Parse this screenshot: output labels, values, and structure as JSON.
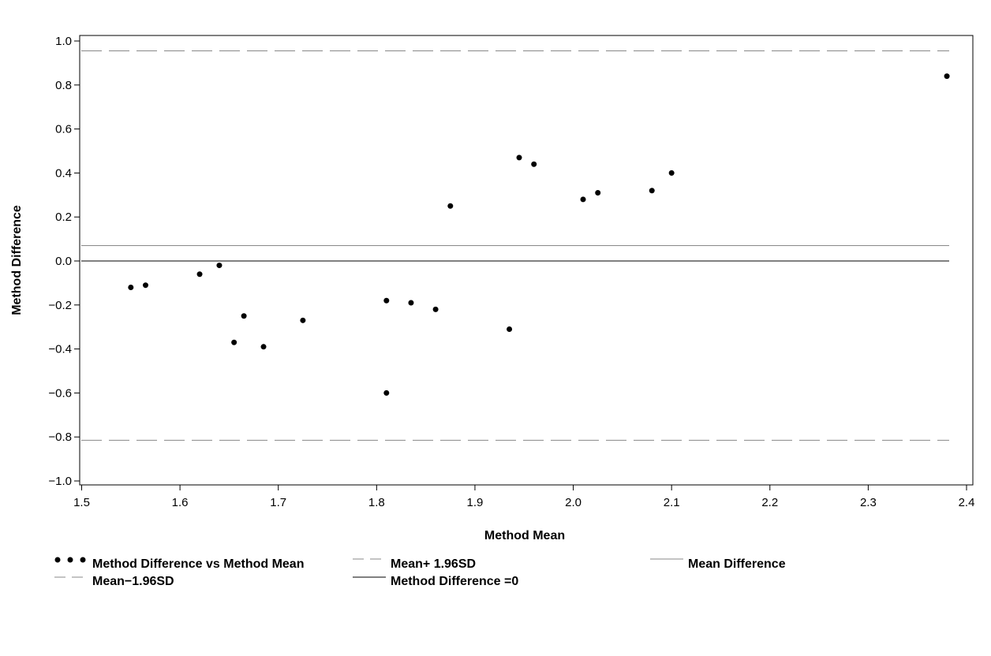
{
  "chart_data": {
    "type": "scatter",
    "title": "",
    "xlabel": "Method Mean",
    "ylabel": "Method Difference",
    "xlim": [
      1.5,
      2.4
    ],
    "ylim": [
      -1.0,
      1.0
    ],
    "x_ticks": [
      1.5,
      1.6,
      1.7,
      1.8,
      1.9,
      2.0,
      2.1,
      2.2,
      2.3,
      2.4
    ],
    "y_ticks": [
      -1.0,
      -0.8,
      -0.6,
      -0.4,
      -0.2,
      0.0,
      0.2,
      0.4,
      0.6,
      0.8,
      1.0
    ],
    "x_tick_labels": [
      "1.5",
      "1.6",
      "1.7",
      "1.8",
      "1.9",
      "2.0",
      "2.1",
      "2.2",
      "2.3",
      "2.4"
    ],
    "y_tick_labels": [
      "−1.0",
      "−0.8",
      "−0.6",
      "−0.4",
      "−0.2",
      "0.0",
      "0.2",
      "0.4",
      "0.6",
      "0.8",
      "1.0"
    ],
    "grid": false,
    "legend_position": "bottom",
    "series": [
      {
        "name": "Method Difference vs Method Mean",
        "kind": "points",
        "color": "#000000",
        "points": [
          {
            "x": 1.55,
            "y": -0.12
          },
          {
            "x": 1.565,
            "y": -0.11
          },
          {
            "x": 1.62,
            "y": -0.06
          },
          {
            "x": 1.64,
            "y": -0.02
          },
          {
            "x": 1.655,
            "y": -0.37
          },
          {
            "x": 1.665,
            "y": -0.25
          },
          {
            "x": 1.685,
            "y": -0.39
          },
          {
            "x": 1.725,
            "y": -0.27
          },
          {
            "x": 1.81,
            "y": -0.18
          },
          {
            "x": 1.81,
            "y": -0.6
          },
          {
            "x": 1.835,
            "y": -0.19
          },
          {
            "x": 1.86,
            "y": -0.22
          },
          {
            "x": 1.875,
            "y": 0.25
          },
          {
            "x": 1.935,
            "y": -0.31
          },
          {
            "x": 1.945,
            "y": 0.47
          },
          {
            "x": 1.96,
            "y": 0.44
          },
          {
            "x": 2.01,
            "y": 0.28
          },
          {
            "x": 2.025,
            "y": 0.31
          },
          {
            "x": 2.08,
            "y": 0.32
          },
          {
            "x": 2.1,
            "y": 0.4
          },
          {
            "x": 2.38,
            "y": 0.84
          }
        ]
      },
      {
        "name": "Mean+ 1.96SD",
        "kind": "hline",
        "y": 0.955,
        "style": "dashed",
        "color": "#888888"
      },
      {
        "name": "Mean Difference",
        "kind": "hline",
        "y": 0.07,
        "style": "solid",
        "color": "#888888"
      },
      {
        "name": "Mean−1.96SD",
        "kind": "hline",
        "y": -0.815,
        "style": "dashed",
        "color": "#888888"
      },
      {
        "name": "Method Difference =0",
        "kind": "hline",
        "y": 0.0,
        "style": "solid",
        "color": "#000000"
      }
    ]
  }
}
